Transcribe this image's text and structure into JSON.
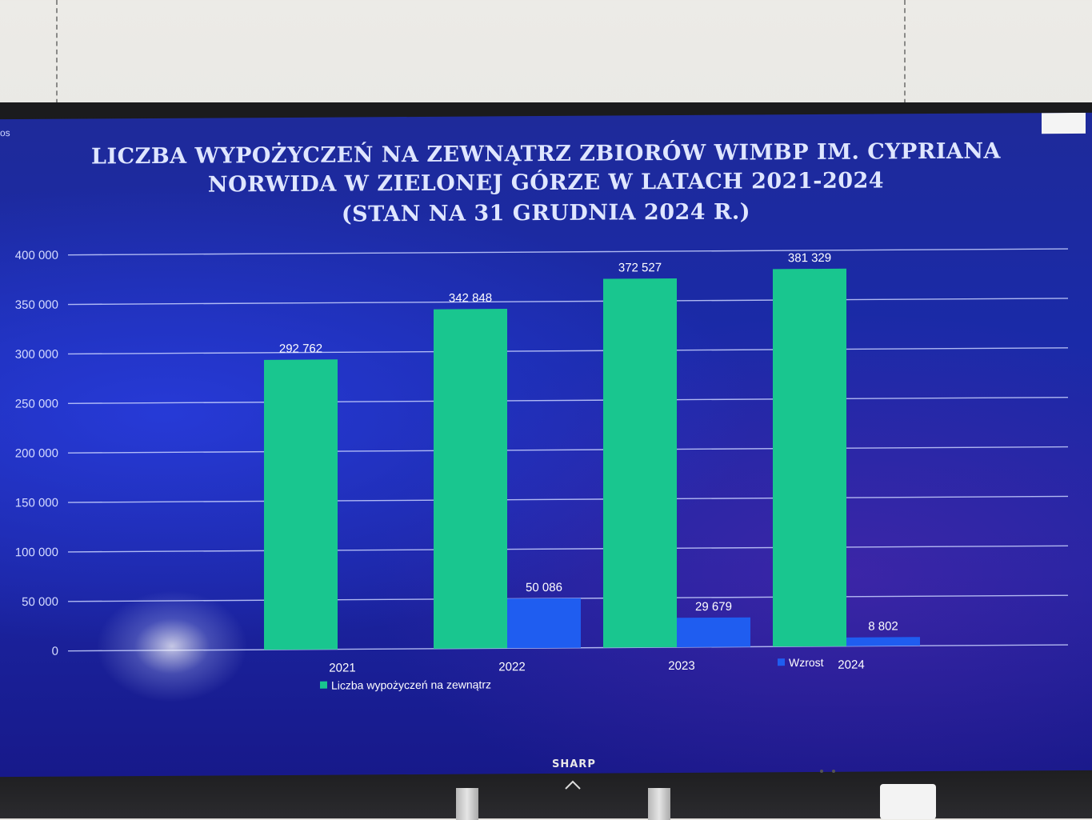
{
  "screen": {
    "title_line1": "LICZBA WYPOŻYCZEŃ NA ZEWNĄTRZ ZBIORÓW WIMBP IM. CYPRIANA",
    "title_line2": "NORWIDA W ZIELONEJ GÓRZE W LATACH 2021-2024",
    "title_line3": "(STAN NA 31 GRUDNIA 2024 R.)",
    "corner_text": "os"
  },
  "tv": {
    "brand": "SHARP"
  },
  "chart_data": {
    "type": "bar",
    "title": "LICZBA WYPOŻYCZEŃ NA ZEWNĄTRZ ZBIORÓW WIMBP IM. CYPRIANA NORWIDA W ZIELONEJ GÓRZE W LATACH 2021-2024 (STAN NA 31 GRUDNIA 2024 R.)",
    "categories": [
      "2021",
      "2022",
      "2023",
      "2024"
    ],
    "series": [
      {
        "name": "Liczba wypożyczeń na zewnątrz",
        "color": "#19c68f",
        "values": [
          292762,
          342848,
          372527,
          381329
        ],
        "labels": [
          "292 762",
          "342 848",
          "372 527",
          "381 329"
        ]
      },
      {
        "name": "Wzrost",
        "color": "#1f5df0",
        "values": [
          null,
          50086,
          29679,
          8802
        ],
        "labels": [
          "",
          "50 086",
          "29 679",
          "8 802"
        ]
      }
    ],
    "ylim": [
      0,
      400000
    ],
    "yticks": [
      0,
      50000,
      100000,
      150000,
      200000,
      250000,
      300000,
      350000,
      400000
    ],
    "ytick_labels": [
      "0",
      "50 000",
      "100 000",
      "150 000",
      "200 000",
      "250 000",
      "300 000",
      "350 000",
      "400 000"
    ],
    "grid": true,
    "legend_position": "bottom"
  }
}
